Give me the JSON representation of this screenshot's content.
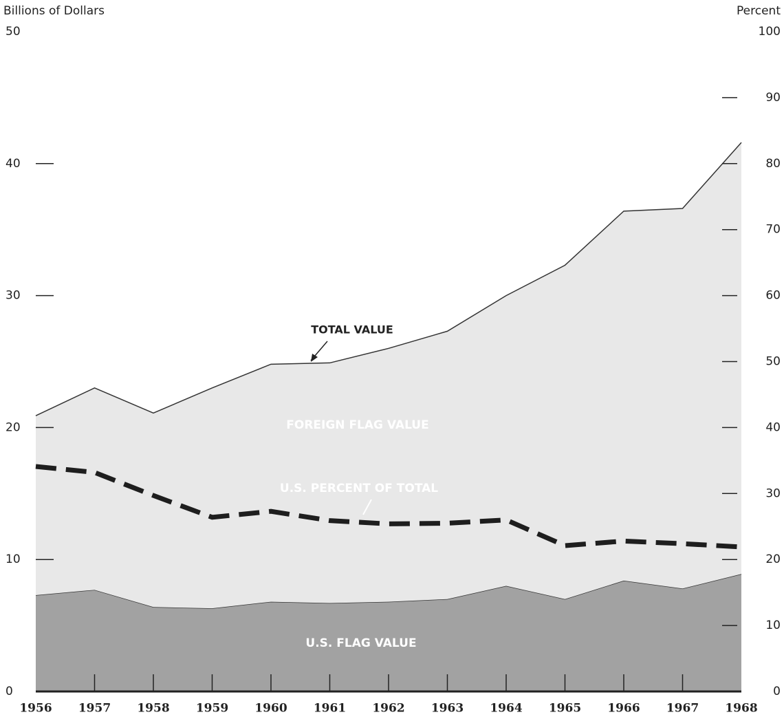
{
  "chart_data": {
    "type": "area",
    "ylabel": "Billions of Dollars",
    "y2label": "Percent",
    "categories": [
      "1956",
      "1957",
      "1958",
      "1959",
      "1960",
      "1961",
      "1962",
      "1963",
      "1964",
      "1965",
      "1966",
      "1967",
      "1968"
    ],
    "series": [
      {
        "name": "U.S. FLAG VALUE",
        "color": "#a2a2a2",
        "values": [
          7.3,
          7.7,
          6.4,
          6.3,
          6.8,
          6.7,
          6.8,
          7.0,
          8.0,
          7.0,
          8.4,
          7.8,
          8.9
        ]
      },
      {
        "name": "FOREIGN FLAG VALUE",
        "color": "#e8e8e8",
        "values": [
          13.6,
          15.3,
          14.7,
          16.7,
          18.0,
          18.2,
          19.2,
          20.3,
          22.0,
          25.3,
          28.0,
          28.8,
          32.7
        ]
      },
      {
        "name": "U.S. PERCENT OF TOTAL",
        "color": "#1e1e1e",
        "axis": "y2",
        "values": [
          34.1,
          33.2,
          29.7,
          26.4,
          27.3,
          25.9,
          25.4,
          25.5,
          26.0,
          22.1,
          22.8,
          22.4,
          21.9
        ]
      }
    ],
    "annotations": [
      "TOTAL VALUE"
    ],
    "ylim": [
      0,
      50
    ],
    "yticks": [
      0,
      10,
      20,
      30,
      40,
      50
    ],
    "y2lim": [
      0,
      100
    ],
    "y2ticks": [
      0,
      10,
      20,
      30,
      40,
      50,
      60,
      70,
      80,
      90,
      100
    ]
  }
}
